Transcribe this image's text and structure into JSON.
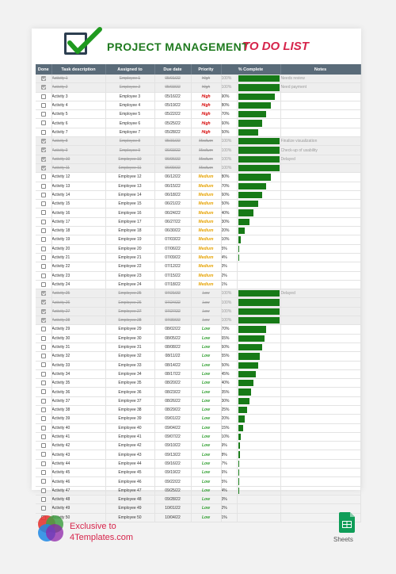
{
  "title": {
    "main": "PROJECT MANAGEMENT",
    "sub": "TO DO LIST"
  },
  "columns": [
    "Done",
    "Task description",
    "Assigned to",
    "Due date",
    "Priority",
    "% Complete",
    "Notes"
  ],
  "colors": {
    "header_bg": "#5a6b79",
    "bar": "#177a17",
    "high": "#d50000",
    "medium": "#e6a200",
    "low": "#2e9e2e",
    "brand": "#d6244b"
  },
  "rows": [
    {
      "done": true,
      "task": "Activity 1",
      "emp": "Employee 1",
      "due": "05/01/22",
      "pri": "High",
      "pct": "100%",
      "note": "Needs review"
    },
    {
      "done": true,
      "task": "Activity 2",
      "emp": "Employee 2",
      "due": "05/03/22",
      "pri": "High",
      "pct": "100%",
      "note": "Need payment"
    },
    {
      "done": false,
      "task": "Activity 3",
      "emp": "Employee 3",
      "due": "05/16/22",
      "pri": "High",
      "pct": "90%",
      "note": ""
    },
    {
      "done": false,
      "task": "Activity 4",
      "emp": "Employee 4",
      "due": "05/19/22",
      "pri": "High",
      "pct": "80%",
      "note": ""
    },
    {
      "done": false,
      "task": "Activity 5",
      "emp": "Employee 5",
      "due": "05/22/22",
      "pri": "High",
      "pct": "70%",
      "note": ""
    },
    {
      "done": false,
      "task": "Activity 6",
      "emp": "Employee 6",
      "due": "05/25/22",
      "pri": "High",
      "pct": "60%",
      "note": ""
    },
    {
      "done": false,
      "task": "Activity 7",
      "emp": "Employee 7",
      "due": "05/28/22",
      "pri": "High",
      "pct": "50%",
      "note": ""
    },
    {
      "done": true,
      "task": "Activity 8",
      "emp": "Employee 8",
      "due": "05/31/22",
      "pri": "Medium",
      "pct": "100%",
      "note": "Finalize visualization"
    },
    {
      "done": true,
      "task": "Activity 9",
      "emp": "Employee 9",
      "due": "06/03/22",
      "pri": "Medium",
      "pct": "100%",
      "note": "Check-up of usability"
    },
    {
      "done": true,
      "task": "Activity 10",
      "emp": "Employee 10",
      "due": "06/06/22",
      "pri": "Medium",
      "pct": "100%",
      "note": "Delayed"
    },
    {
      "done": true,
      "task": "Activity 11",
      "emp": "Employee 11",
      "due": "06/09/22",
      "pri": "Medium",
      "pct": "100%",
      "note": ""
    },
    {
      "done": false,
      "task": "Activity 12",
      "emp": "Employee 12",
      "due": "06/12/22",
      "pri": "Medium",
      "pct": "80%",
      "note": ""
    },
    {
      "done": false,
      "task": "Activity 13",
      "emp": "Employee 13",
      "due": "06/15/22",
      "pri": "Medium",
      "pct": "70%",
      "note": ""
    },
    {
      "done": false,
      "task": "Activity 14",
      "emp": "Employee 14",
      "due": "06/18/22",
      "pri": "Medium",
      "pct": "60%",
      "note": ""
    },
    {
      "done": false,
      "task": "Activity 15",
      "emp": "Employee 15",
      "due": "06/21/22",
      "pri": "Medium",
      "pct": "50%",
      "note": ""
    },
    {
      "done": false,
      "task": "Activity 16",
      "emp": "Employee 16",
      "due": "06/24/22",
      "pri": "Medium",
      "pct": "40%",
      "note": ""
    },
    {
      "done": false,
      "task": "Activity 17",
      "emp": "Employee 17",
      "due": "06/27/22",
      "pri": "Medium",
      "pct": "30%",
      "note": ""
    },
    {
      "done": false,
      "task": "Activity 18",
      "emp": "Employee 18",
      "due": "06/30/22",
      "pri": "Medium",
      "pct": "20%",
      "note": ""
    },
    {
      "done": false,
      "task": "Activity 19",
      "emp": "Employee 19",
      "due": "07/03/22",
      "pri": "Medium",
      "pct": "10%",
      "note": ""
    },
    {
      "done": false,
      "task": "Activity 20",
      "emp": "Employee 20",
      "due": "07/06/22",
      "pri": "Medium",
      "pct": "5%",
      "note": ""
    },
    {
      "done": false,
      "task": "Activity 21",
      "emp": "Employee 21",
      "due": "07/09/22",
      "pri": "Medium",
      "pct": "4%",
      "note": ""
    },
    {
      "done": false,
      "task": "Activity 22",
      "emp": "Employee 22",
      "due": "07/12/22",
      "pri": "Medium",
      "pct": "3%",
      "note": ""
    },
    {
      "done": false,
      "task": "Activity 23",
      "emp": "Employee 23",
      "due": "07/15/22",
      "pri": "Medium",
      "pct": "2%",
      "note": ""
    },
    {
      "done": false,
      "task": "Activity 24",
      "emp": "Employee 24",
      "due": "07/18/22",
      "pri": "Medium",
      "pct": "1%",
      "note": ""
    },
    {
      "done": true,
      "task": "Activity 25",
      "emp": "Employee 25",
      "due": "07/21/22",
      "pri": "Low",
      "pct": "100%",
      "note": "Delayed"
    },
    {
      "done": true,
      "task": "Activity 26",
      "emp": "Employee 26",
      "due": "07/24/22",
      "pri": "Low",
      "pct": "100%",
      "note": ""
    },
    {
      "done": true,
      "task": "Activity 27",
      "emp": "Employee 27",
      "due": "07/27/22",
      "pri": "Low",
      "pct": "100%",
      "note": ""
    },
    {
      "done": true,
      "task": "Activity 28",
      "emp": "Employee 28",
      "due": "07/30/22",
      "pri": "Low",
      "pct": "100%",
      "note": ""
    },
    {
      "done": false,
      "task": "Activity 29",
      "emp": "Employee 29",
      "due": "08/02/22",
      "pri": "Low",
      "pct": "70%",
      "note": ""
    },
    {
      "done": false,
      "task": "Activity 30",
      "emp": "Employee 30",
      "due": "08/05/22",
      "pri": "Low",
      "pct": "65%",
      "note": ""
    },
    {
      "done": false,
      "task": "Activity 31",
      "emp": "Employee 31",
      "due": "08/08/22",
      "pri": "Low",
      "pct": "60%",
      "note": ""
    },
    {
      "done": false,
      "task": "Activity 32",
      "emp": "Employee 32",
      "due": "08/11/22",
      "pri": "Low",
      "pct": "55%",
      "note": ""
    },
    {
      "done": false,
      "task": "Activity 33",
      "emp": "Employee 33",
      "due": "08/14/22",
      "pri": "Low",
      "pct": "50%",
      "note": ""
    },
    {
      "done": false,
      "task": "Activity 34",
      "emp": "Employee 34",
      "due": "08/17/22",
      "pri": "Low",
      "pct": "45%",
      "note": ""
    },
    {
      "done": false,
      "task": "Activity 35",
      "emp": "Employee 35",
      "due": "08/20/22",
      "pri": "Low",
      "pct": "40%",
      "note": ""
    },
    {
      "done": false,
      "task": "Activity 36",
      "emp": "Employee 36",
      "due": "08/23/22",
      "pri": "Low",
      "pct": "35%",
      "note": ""
    },
    {
      "done": false,
      "task": "Activity 37",
      "emp": "Employee 37",
      "due": "08/26/22",
      "pri": "Low",
      "pct": "30%",
      "note": ""
    },
    {
      "done": false,
      "task": "Activity 38",
      "emp": "Employee 38",
      "due": "08/29/22",
      "pri": "Low",
      "pct": "25%",
      "note": ""
    },
    {
      "done": false,
      "task": "Activity 39",
      "emp": "Employee 39",
      "due": "09/01/22",
      "pri": "Low",
      "pct": "20%",
      "note": ""
    },
    {
      "done": false,
      "task": "Activity 40",
      "emp": "Employee 40",
      "due": "09/04/22",
      "pri": "Low",
      "pct": "15%",
      "note": ""
    },
    {
      "done": false,
      "task": "Activity 41",
      "emp": "Employee 41",
      "due": "09/07/22",
      "pri": "Low",
      "pct": "10%",
      "note": ""
    },
    {
      "done": false,
      "task": "Activity 42",
      "emp": "Employee 42",
      "due": "09/10/22",
      "pri": "Low",
      "pct": "9%",
      "note": ""
    },
    {
      "done": false,
      "task": "Activity 43",
      "emp": "Employee 43",
      "due": "09/13/22",
      "pri": "Low",
      "pct": "8%",
      "note": ""
    },
    {
      "done": false,
      "task": "Activity 44",
      "emp": "Employee 44",
      "due": "09/16/22",
      "pri": "Low",
      "pct": "7%",
      "note": ""
    },
    {
      "done": false,
      "task": "Activity 45",
      "emp": "Employee 45",
      "due": "09/19/22",
      "pri": "Low",
      "pct": "6%",
      "note": ""
    },
    {
      "done": false,
      "task": "Activity 46",
      "emp": "Employee 46",
      "due": "09/22/22",
      "pri": "Low",
      "pct": "5%",
      "note": ""
    },
    {
      "done": false,
      "task": "Activity 47",
      "emp": "Employee 47",
      "due": "09/25/22",
      "pri": "Low",
      "pct": "4%",
      "note": ""
    },
    {
      "done": false,
      "task": "Activity 48",
      "emp": "Employee 48",
      "due": "09/28/22",
      "pri": "Low",
      "pct": "3%",
      "note": ""
    },
    {
      "done": false,
      "task": "Activity 49",
      "emp": "Employee 49",
      "due": "10/01/22",
      "pri": "Low",
      "pct": "2%",
      "note": ""
    },
    {
      "done": false,
      "task": "Activity 50",
      "emp": "Employee 50",
      "due": "10/04/22",
      "pri": "Low",
      "pct": "1%",
      "note": ""
    }
  ],
  "footer": {
    "line1": "Exclusive to",
    "line2": "4Templates.com",
    "app_label": "Sheets",
    "logo_icon": "4templates-logo-icon",
    "app_icon": "google-sheets-icon"
  }
}
